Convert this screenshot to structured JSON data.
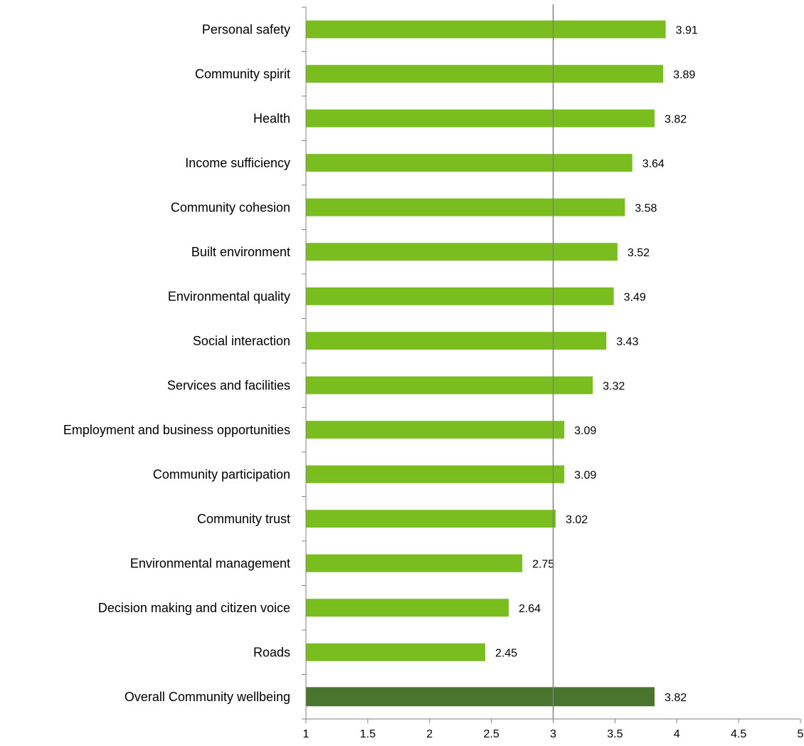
{
  "chart_data": {
    "type": "bar",
    "orientation": "horizontal",
    "categories": [
      "Personal safety",
      "Community spirit",
      "Health",
      "Income sufficiency",
      "Community cohesion",
      "Built environment",
      "Environmental quality",
      "Social interaction",
      "Services and facilities",
      "Employment and business opportunities",
      "Community participation",
      "Community trust",
      "Environmental management",
      "Decision making and citizen voice",
      "Roads",
      "Overall Community wellbeing"
    ],
    "values": [
      3.91,
      3.89,
      3.82,
      3.64,
      3.58,
      3.52,
      3.49,
      3.43,
      3.32,
      3.09,
      3.09,
      3.02,
      2.75,
      2.64,
      2.45,
      3.82
    ],
    "value_labels": [
      "3.91",
      "3.89",
      "3.82",
      "3.64",
      "3.58",
      "3.52",
      "3.49",
      "3.43",
      "3.32",
      "3.09",
      "3.09",
      "3.02",
      "2.75",
      "2.64",
      "2.45",
      "3.82"
    ],
    "xlim": [
      1,
      5
    ],
    "xticks": [
      1,
      1.5,
      2,
      2.5,
      3,
      3.5,
      4,
      4.5,
      5
    ],
    "xtick_labels": [
      "1",
      "1.5",
      "2",
      "2.5",
      "3",
      "3.5",
      "4",
      "4.5",
      "5"
    ],
    "reference_line": 3,
    "grid": false,
    "legend": "none",
    "title": "",
    "xlabel": "",
    "ylabel": "",
    "colors": {
      "bar": "#7abd1f",
      "highlight_bar": "#4a752e",
      "axis": "#808080",
      "reference_line": "#808080"
    },
    "highlight_category": "Overall Community wellbeing"
  }
}
